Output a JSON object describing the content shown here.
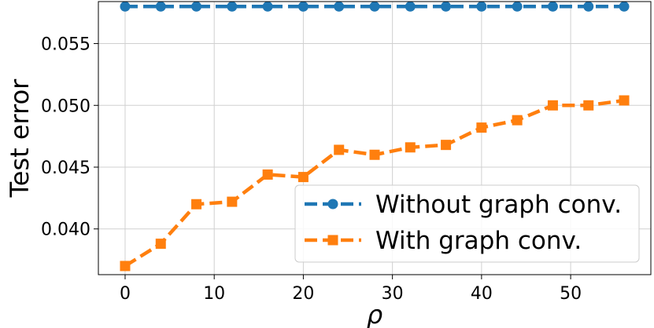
{
  "chart_data": {
    "type": "line",
    "title": "",
    "xlabel": "ρ",
    "ylabel": "Test error",
    "xlim": [
      -3,
      59
    ],
    "ylim": [
      0.0363,
      0.0584
    ],
    "xticks": [
      0,
      10,
      20,
      30,
      40,
      50
    ],
    "xtick_labels": [
      "0",
      "10",
      "20",
      "30",
      "40",
      "50"
    ],
    "yticks": [
      0.04,
      0.045,
      0.05,
      0.055
    ],
    "ytick_labels": [
      "0.040",
      "0.045",
      "0.050",
      "0.055"
    ],
    "grid": true,
    "legend_position": "lower-right",
    "x": [
      0,
      4,
      8,
      12,
      16,
      20,
      24,
      28,
      32,
      36,
      40,
      44,
      48,
      52,
      56
    ],
    "series": [
      {
        "name": "Without graph conv.",
        "color": "#1f77b4",
        "marker": "circle",
        "values": [
          0.058,
          0.058,
          0.058,
          0.058,
          0.058,
          0.058,
          0.058,
          0.058,
          0.058,
          0.058,
          0.058,
          0.058,
          0.058,
          0.058,
          0.058
        ]
      },
      {
        "name": "With graph conv.",
        "color": "#ff7f0e",
        "marker": "square",
        "values": [
          0.037,
          0.0388,
          0.042,
          0.0422,
          0.0444,
          0.0442,
          0.0464,
          0.046,
          0.0466,
          0.0468,
          0.0482,
          0.0488,
          0.05,
          0.05,
          0.0504
        ]
      }
    ]
  }
}
